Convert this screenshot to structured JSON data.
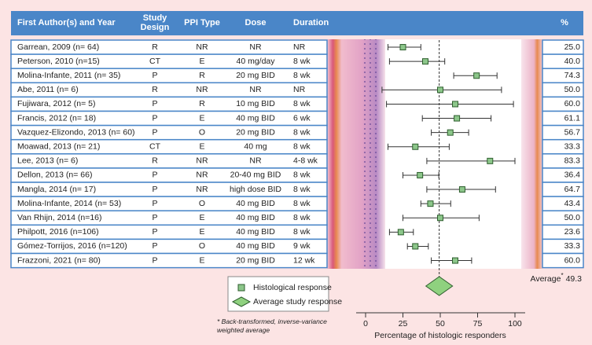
{
  "chart_data": {
    "type": "forest",
    "columns": [
      "First Author(s) and Year",
      "Study Design",
      "PPI Type",
      "Dose",
      "Duration",
      "%"
    ],
    "studies": [
      [
        "Garrean, 2009 (n= 64)",
        "R",
        "NR",
        "NR",
        "NR"
      ],
      [
        "Peterson, 2010 (n=15)",
        "CT",
        "E",
        "40 mg/day",
        "8 wk"
      ],
      [
        "Molina-Infante, 2011 (n= 35)",
        "P",
        "R",
        "20 mg BID",
        "8 wk"
      ],
      [
        "Abe, 2011 (n= 6)",
        "R",
        "NR",
        "NR",
        "NR"
      ],
      [
        "Fujiwara, 2012 (n= 5)",
        "P",
        "R",
        "10 mg BID",
        "8 wk"
      ],
      [
        "Francis, 2012 (n= 18)",
        "P",
        "E",
        "40 mg BID",
        "6 wk"
      ],
      [
        "Vazquez-Elizondo, 2013 (n= 60)",
        "P",
        "O",
        "20 mg BID",
        "8 wk"
      ],
      [
        "Moawad, 2013 (n= 21)",
        "CT",
        "E",
        "40 mg",
        "8 wk"
      ],
      [
        "Lee, 2013 (n= 6)",
        "R",
        "NR",
        "NR",
        "4-8 wk"
      ],
      [
        "Dellon, 2013 (n= 66)",
        "P",
        "NR",
        "20-40 mg BID",
        "8 wk"
      ],
      [
        "Mangla, 2014 (n= 17)",
        "P",
        "NR",
        "high dose BID",
        "8 wk"
      ],
      [
        "Molina-Infante, 2014 (n= 53)",
        "P",
        "O",
        "40 mg BID",
        "8 wk"
      ],
      [
        "Van Rhijn, 2014 (n=16)",
        "P",
        "E",
        "40 mg BID",
        "8 wk"
      ],
      [
        "Philpott, 2016 (n=106)",
        "P",
        "E",
        "40 mg BID",
        "8 wk"
      ],
      [
        "Gómez-Torrijos, 2016 (n=120)",
        "P",
        "O",
        "40 mg BID",
        "9 wk"
      ],
      [
        "Frazzoni, 2021 (n= 80)",
        "P",
        "E",
        "20 mg BID",
        "12 wk"
      ]
    ],
    "values": [
      25,
      40,
      74.3,
      50,
      60,
      61.1,
      56.7,
      33.3,
      83.3,
      36.4,
      64.7,
      43.4,
      50,
      23.6,
      33.3,
      60
    ],
    "value_labels": [
      "25.0",
      "40.0",
      "74.3",
      "50.0",
      "60.0",
      "61.1",
      "56.7",
      "33.3",
      "83.3",
      "36.4",
      "64.7",
      "43.4",
      "50.0",
      "23.6",
      "33.3",
      "60.0"
    ],
    "ci_low": [
      15,
      16,
      59,
      11,
      14,
      38,
      44,
      15,
      41,
      25,
      41,
      37,
      25,
      16,
      28,
      44
    ],
    "ci_high": [
      37,
      53,
      88,
      91,
      99,
      84,
      69,
      56,
      100,
      49,
      87,
      57,
      76,
      32,
      42,
      71
    ],
    "color": "#8cc68a",
    "average": 49.3,
    "average_label": "Average",
    "average_mark": "*",
    "average_color": "#8fd17f",
    "legend": [
      "Histological response",
      "Average study response"
    ],
    "footnote": "* Back-transformed, inverse-variance weighted average",
    "xlabel": "Percentage of histologic responders",
    "xlim": [
      0,
      100
    ],
    "xticks": [
      0,
      25,
      50,
      75,
      100
    ]
  }
}
